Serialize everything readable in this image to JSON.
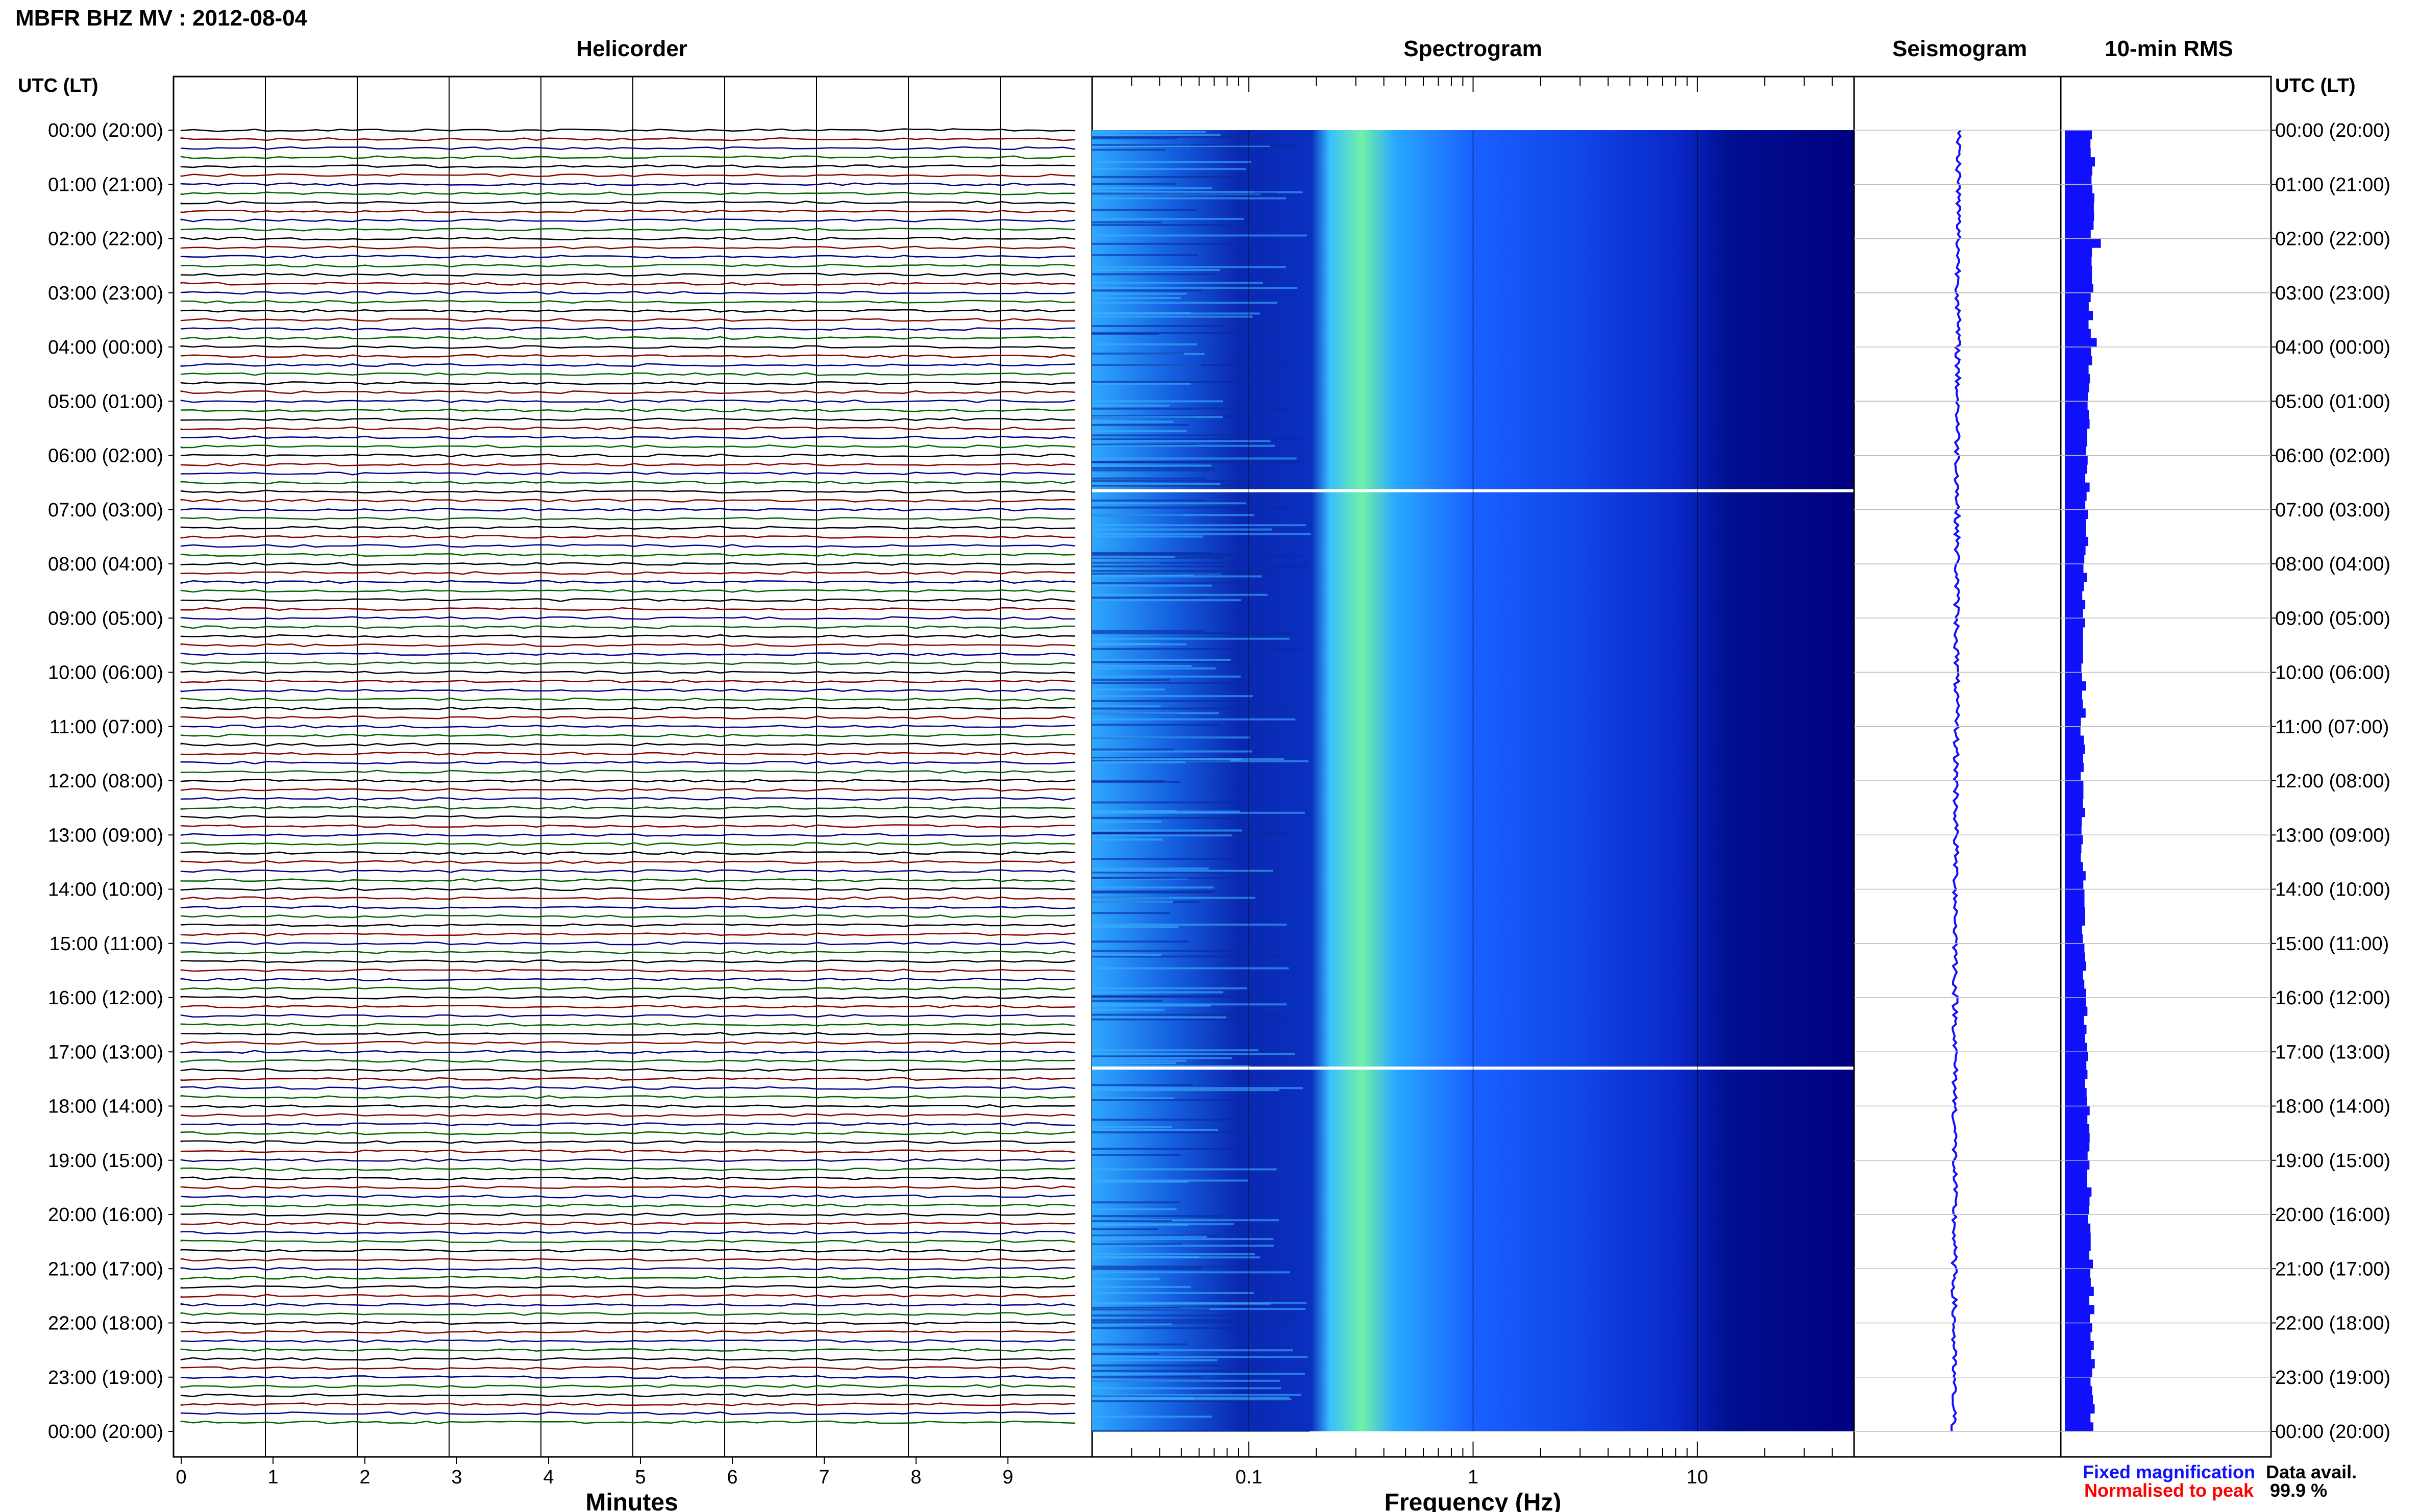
{
  "header": {
    "title": "MBFR BHZ MV : 2012-08-04",
    "utc_label_left": "UTC (LT)",
    "utc_label_right": "UTC (LT)"
  },
  "panels": {
    "helicorder": "Helicorder",
    "spectrogram": "Spectrogram",
    "seismogram": "Seismogram",
    "rms": "10-min RMS"
  },
  "footer": {
    "fixed_label": "Fixed magnification",
    "normalised_label": "Normalised to peak",
    "data_avail_label": "Data avail.",
    "data_avail_value": "99.9 %"
  },
  "colors": {
    "fixed": "#1010ff",
    "normalised": "#ff0000",
    "trace_cycle": [
      "#000000",
      "#8b0000",
      "#00008b",
      "#006400"
    ],
    "spectro_low": "#00007f",
    "spectro_high": "#6ef0a0"
  },
  "chart_data": [
    {
      "type": "line",
      "panel": "helicorder",
      "xlabel": "Minutes",
      "x_ticks": [
        "0",
        "1",
        "2",
        "3",
        "4",
        "5",
        "6",
        "7",
        "8",
        "9"
      ],
      "xlim": [
        0,
        10
      ],
      "time_labels": [
        "00:00 (20:00)",
        "01:00 (21:00)",
        "02:00 (22:00)",
        "03:00 (23:00)",
        "04:00 (00:00)",
        "05:00 (01:00)",
        "06:00 (02:00)",
        "07:00 (03:00)",
        "08:00 (04:00)",
        "09:00 (05:00)",
        "10:00 (06:00)",
        "11:00 (07:00)",
        "12:00 (08:00)",
        "13:00 (09:00)",
        "14:00 (10:00)",
        "15:00 (11:00)",
        "16:00 (12:00)",
        "17:00 (13:00)",
        "18:00 (14:00)",
        "19:00 (15:00)",
        "20:00 (16:00)",
        "21:00 (17:00)",
        "22:00 (18:00)",
        "23:00 (19:00)",
        "00:00 (20:00)"
      ],
      "traces": 144,
      "minutes_per_trace": 10
    },
    {
      "type": "heatmap",
      "panel": "spectrogram",
      "xlabel": "Frequency (Hz)",
      "x_scale": "log",
      "x_ticks": [
        "0.1",
        "1",
        "10"
      ],
      "xlim": [
        0.02,
        50
      ],
      "gaps_utc_hours": [
        6.65,
        17.3
      ]
    },
    {
      "type": "line",
      "panel": "seismogram",
      "note_values": "trend of daily seismogram"
    },
    {
      "type": "bar",
      "panel": "rms",
      "intervals": 144
    }
  ]
}
